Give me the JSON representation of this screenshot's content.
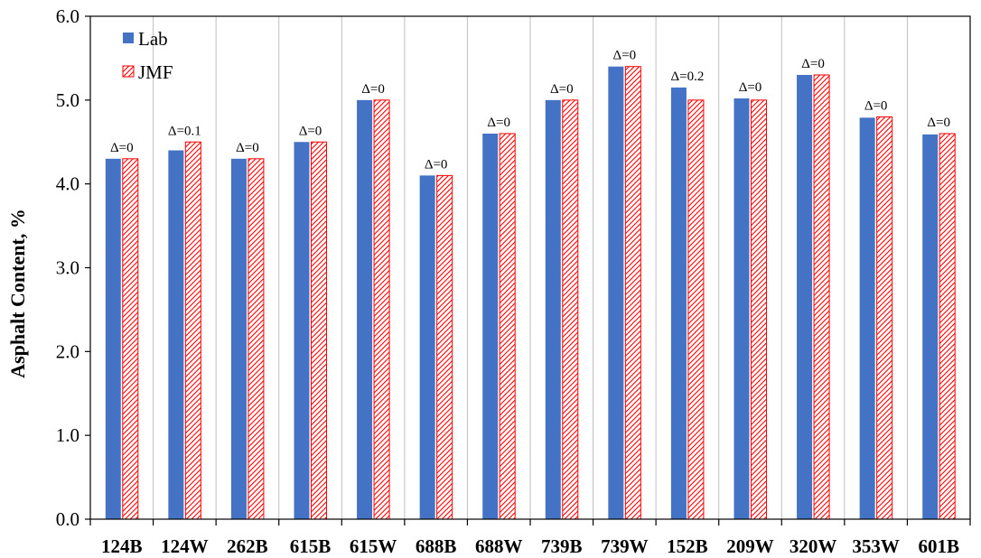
{
  "chart_data": {
    "type": "bar",
    "title": "",
    "xlabel": "",
    "ylabel": "Asphalt Content, %",
    "ylim": [
      0,
      6
    ],
    "yticks": [
      "0.0",
      "1.0",
      "2.0",
      "3.0",
      "4.0",
      "5.0",
      "6.0"
    ],
    "grid": "vertical category separators",
    "legend_position": "top-left",
    "categories": [
      "124B",
      "124W",
      "262B",
      "615B",
      "615W",
      "688B",
      "688W",
      "739B",
      "739W",
      "152B",
      "209W",
      "320W",
      "353W",
      "601B"
    ],
    "series": [
      {
        "name": "Lab",
        "color": "#4472c4",
        "pattern": "solid",
        "values": [
          4.3,
          4.4,
          4.3,
          4.5,
          5.0,
          4.1,
          4.6,
          5.0,
          5.4,
          5.15,
          5.02,
          5.3,
          4.79,
          4.59
        ]
      },
      {
        "name": "JMF",
        "color": "#ff0000",
        "pattern": "diagonal-hatch",
        "values": [
          4.3,
          4.5,
          4.3,
          4.5,
          5.0,
          4.1,
          4.6,
          5.0,
          5.4,
          5.0,
          5.0,
          5.3,
          4.8,
          4.6
        ]
      }
    ],
    "annotations": [
      "Δ=0",
      "Δ=0.1",
      "Δ=0",
      "Δ=0",
      "Δ=0",
      "Δ=0",
      "Δ=0",
      "Δ=0",
      "Δ=0",
      "Δ=0.2",
      "Δ=0",
      "Δ=0",
      "Δ=0",
      "Δ=0"
    ]
  }
}
